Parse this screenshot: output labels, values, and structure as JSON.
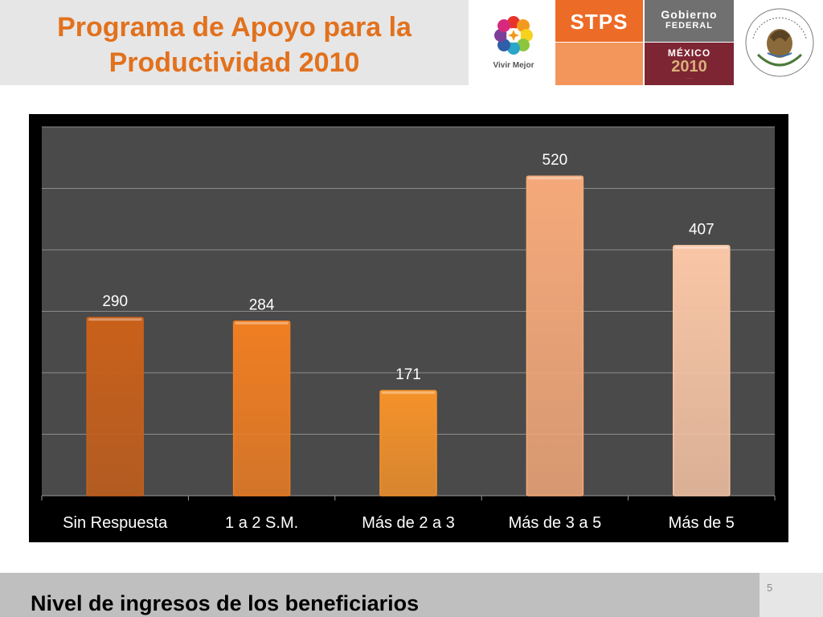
{
  "header": {
    "title_line1": "Programa de Apoyo para la",
    "title_line2": "Productividad 2010",
    "vivir_mejor": "Vivir Mejor",
    "stps": "STPS",
    "gobierno": "Gobierno",
    "federal": "FEDERAL",
    "mexico": "MÉXICO",
    "year": "2010",
    "seal_text": "ESTADOS UNIDOS MEXICANOS"
  },
  "colors": {
    "title": "#e2711d",
    "chart_bg": "#4a4a4a",
    "stps_orange": "#ec6b27",
    "gobierno_wine": "#7e2533"
  },
  "chart_data": {
    "type": "bar",
    "categories": [
      "Sin Respuesta",
      "1 a 2 S.M.",
      "Más de 2 a 3",
      "Más de 3 a 5",
      "Más de 5"
    ],
    "values": [
      290,
      284,
      171,
      520,
      407
    ],
    "bar_colors": [
      "#c9601a",
      "#f07e22",
      "#f5922a",
      "#f5a97a",
      "#f9c6a6"
    ],
    "ylim": [
      0,
      600
    ],
    "y_gridlines": [
      0,
      100,
      200,
      300,
      400,
      500,
      600
    ],
    "y_tick_labels_shown": false,
    "data_labels": true,
    "grid": true,
    "legend": "none"
  },
  "footer": {
    "subtitle": "Nivel de ingresos de los beneficiarios",
    "page_number": "5"
  }
}
